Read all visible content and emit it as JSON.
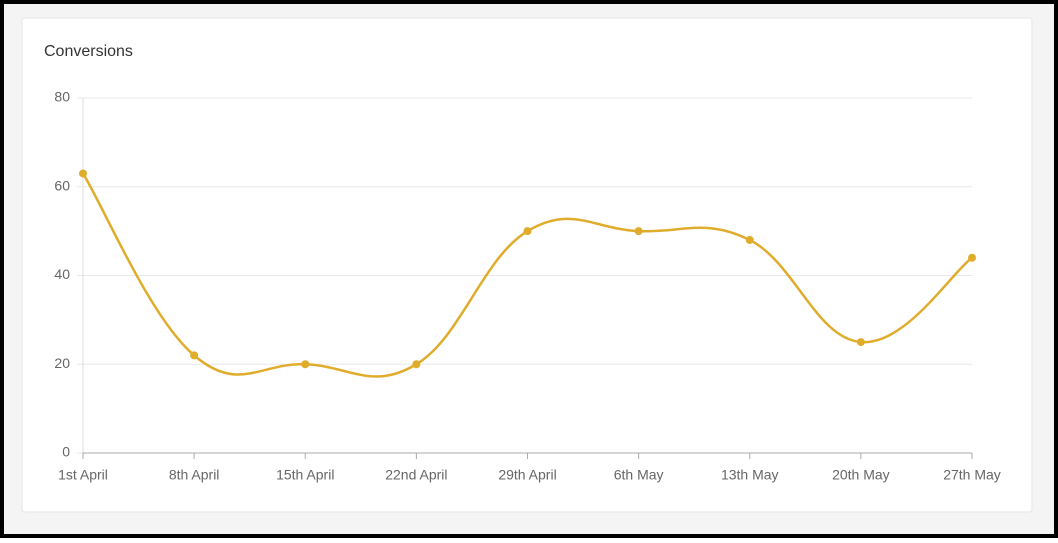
{
  "chart_data": {
    "type": "line",
    "title": "Conversions",
    "categories": [
      "1st April",
      "8th April",
      "15th April",
      "22nd April",
      "29th April",
      "6th May",
      "13th May",
      "20th May",
      "27th May"
    ],
    "values": [
      63,
      22,
      20,
      20,
      50,
      50,
      48,
      25,
      44
    ],
    "color": "#e0ac2b",
    "ylim": [
      0,
      80
    ],
    "yticks": [
      0,
      20,
      40,
      60,
      80
    ],
    "grid": true
  }
}
